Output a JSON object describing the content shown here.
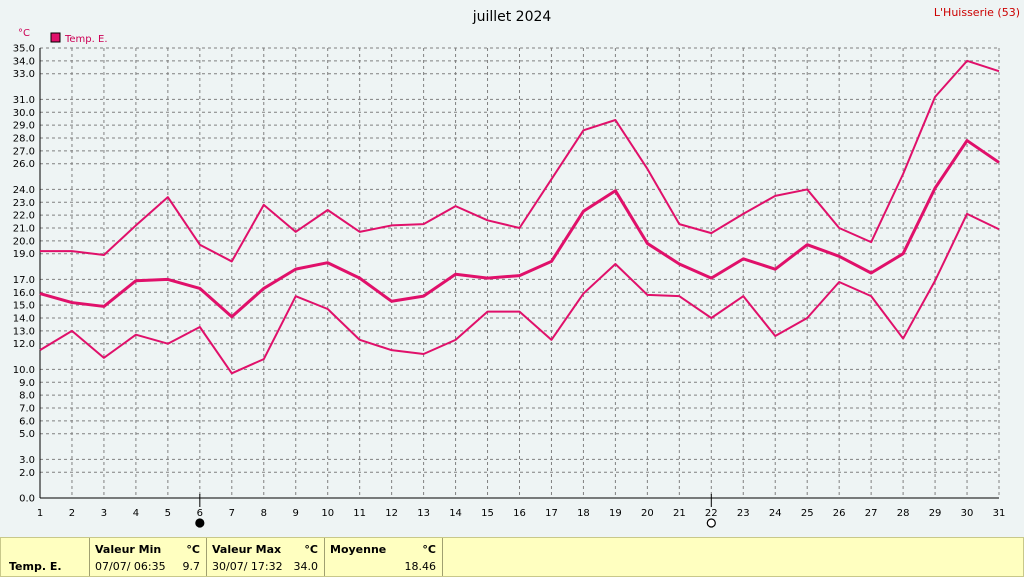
{
  "header": {
    "title": "juillet 2024",
    "station": "L'Huisserie (53)",
    "unit_label": "°C",
    "legend_label": "Temp. E."
  },
  "colors": {
    "series": "#e0106a",
    "grid": "#808080",
    "background": "#eef4f4",
    "stats_background": "#ffffc0"
  },
  "chart_data": {
    "type": "line",
    "title": "juillet 2024",
    "ylabel": "°C",
    "x": [
      1,
      2,
      3,
      4,
      5,
      6,
      7,
      8,
      9,
      10,
      11,
      12,
      13,
      14,
      15,
      16,
      17,
      18,
      19,
      20,
      21,
      22,
      23,
      24,
      25,
      26,
      27,
      28,
      29,
      30,
      31
    ],
    "xlim": [
      1,
      31
    ],
    "ylim": [
      0,
      35
    ],
    "yticks": [
      0.0,
      2.0,
      3.0,
      5.0,
      6.0,
      7.0,
      8.0,
      9.0,
      10.0,
      12.0,
      13.0,
      14.0,
      15.0,
      16.0,
      17.0,
      19.0,
      20.0,
      21.0,
      22.0,
      23.0,
      24.0,
      26.0,
      27.0,
      28.0,
      29.0,
      30.0,
      31.0,
      33.0,
      34.0,
      35.0
    ],
    "grid": true,
    "legend_position": "top-left",
    "series": [
      {
        "name": "Temp. E.",
        "role": "max",
        "values": [
          19.2,
          19.2,
          18.9,
          21.2,
          23.4,
          19.7,
          18.4,
          22.8,
          20.7,
          22.4,
          20.7,
          21.2,
          21.3,
          22.7,
          21.6,
          21.0,
          24.8,
          28.6,
          29.4,
          25.6,
          21.3,
          20.6,
          22.1,
          23.5,
          24.0,
          21.0,
          19.9,
          25.2,
          31.2,
          34.0,
          33.2
        ]
      },
      {
        "name": "Temp. E.",
        "role": "mean",
        "values": [
          15.9,
          15.2,
          14.9,
          16.9,
          17.0,
          16.3,
          14.1,
          16.3,
          17.8,
          18.3,
          17.1,
          15.3,
          15.7,
          17.4,
          17.1,
          17.3,
          18.4,
          22.3,
          23.9,
          19.8,
          18.2,
          17.1,
          18.6,
          17.8,
          19.7,
          18.8,
          17.5,
          19.0,
          24.1,
          27.8,
          26.1
        ]
      },
      {
        "name": "Temp. E.",
        "role": "min",
        "values": [
          11.5,
          13.0,
          10.9,
          12.7,
          12.0,
          13.3,
          9.7,
          10.8,
          15.7,
          14.7,
          12.3,
          11.5,
          11.2,
          12.3,
          14.5,
          14.5,
          12.3,
          15.9,
          18.2,
          15.8,
          15.7,
          14.0,
          15.7,
          12.6,
          14.0,
          16.8,
          15.7,
          12.4,
          16.9,
          22.1,
          20.9
        ]
      }
    ],
    "markers": [
      {
        "day": 6,
        "symbol": "filled-circle"
      },
      {
        "day": 22,
        "symbol": "open-circle"
      }
    ]
  },
  "stats": {
    "series_label": "Temp. E.",
    "min_header": "Valeur Min",
    "max_header": "Valeur Max",
    "mean_header": "Moyenne",
    "unit": "°C",
    "min_when": "07/07/  06:35",
    "min_value": "9.7",
    "max_when": "30/07/  17:32",
    "max_value": "34.0",
    "mean_value": "18.46"
  }
}
